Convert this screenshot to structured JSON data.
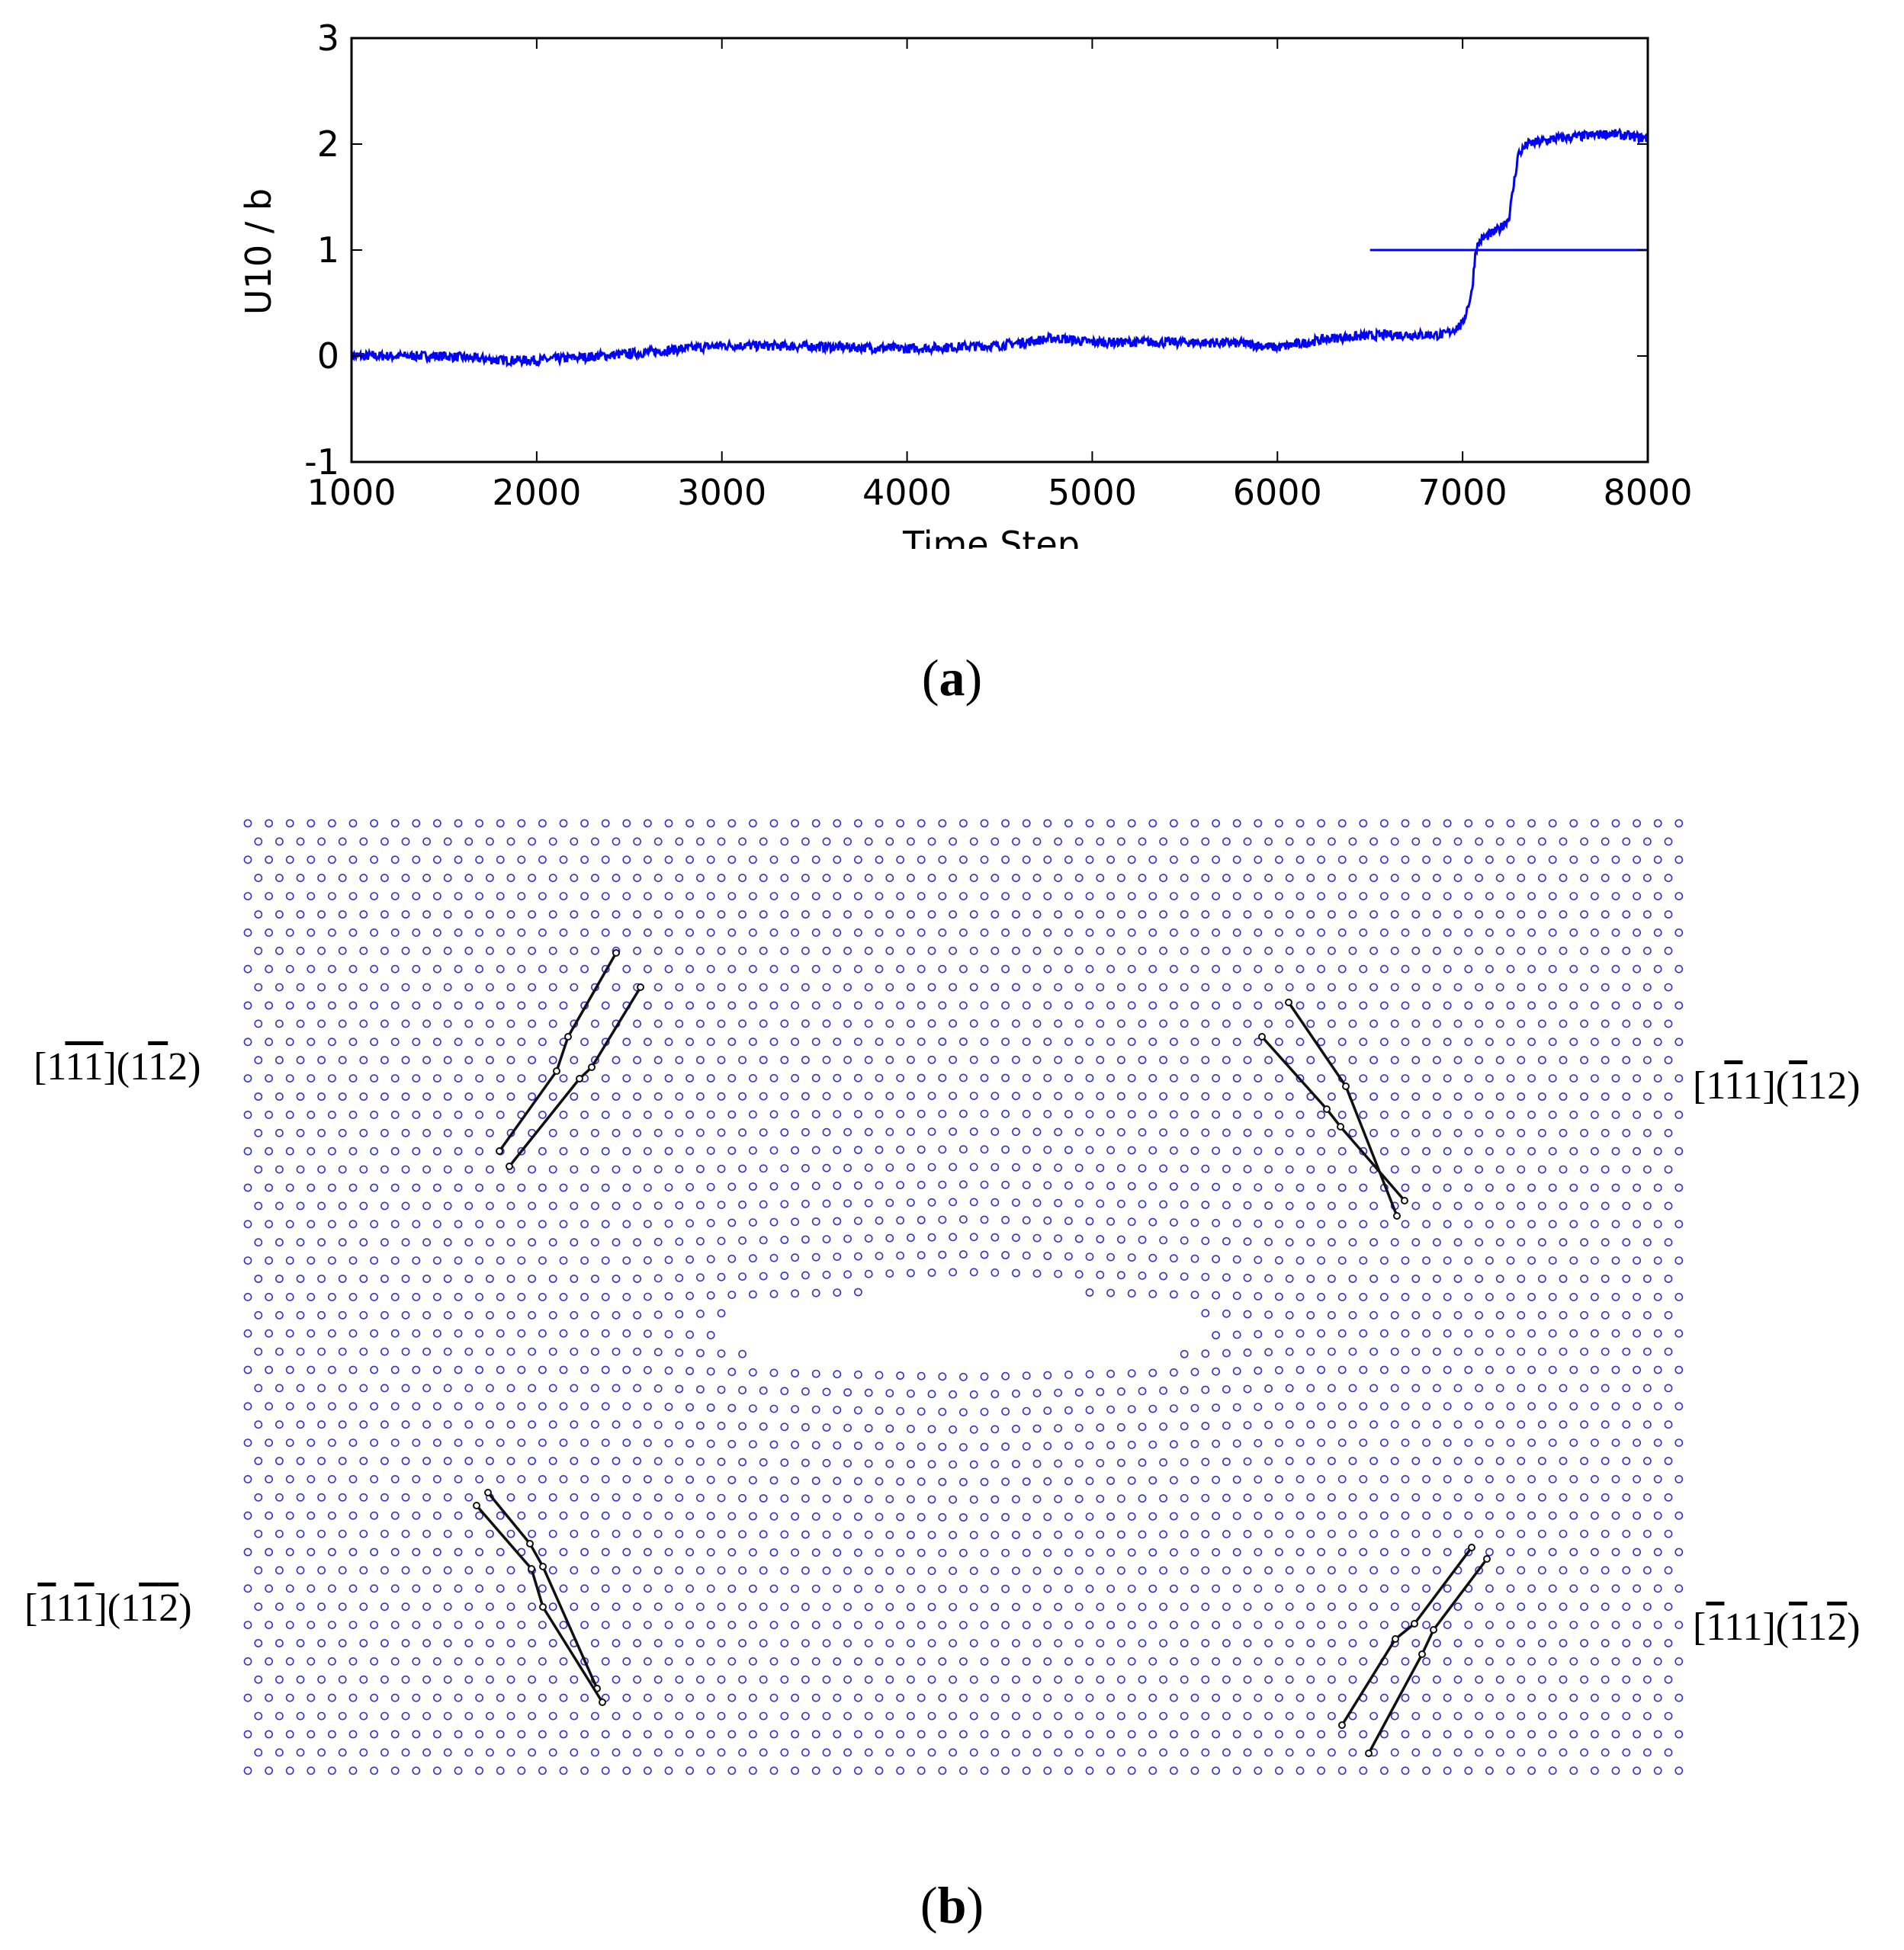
{
  "chart_data": [
    {
      "type": "line",
      "xlabel": "Time Step",
      "ylabel": "U10 / b",
      "xlim": [
        1000,
        8000
      ],
      "ylim": [
        -1,
        3
      ],
      "x_ticks": [
        "1000",
        "2000",
        "3000",
        "4000",
        "5000",
        "6000",
        "7000",
        "8000"
      ],
      "y_ticks": [
        "-1",
        "0",
        "1",
        "2",
        "3"
      ],
      "grid": false,
      "color": "#0000ff",
      "series": [
        {
          "x": [
            1000,
            1500,
            1800,
            2000,
            2500,
            3000,
            3500,
            4000,
            4500,
            4800,
            5000,
            5500,
            5800,
            6000,
            6300,
            6600,
            6900,
            7000,
            7050,
            7070,
            7100,
            7200,
            7250,
            7300,
            7350,
            7500,
            7800,
            8000
          ],
          "values": [
            0.0,
            0.0,
            -0.04,
            -0.04,
            0.02,
            0.1,
            0.09,
            0.07,
            0.1,
            0.17,
            0.13,
            0.13,
            0.12,
            0.08,
            0.17,
            0.2,
            0.2,
            0.3,
            0.6,
            1.0,
            1.1,
            1.2,
            1.3,
            1.9,
            2.0,
            2.05,
            2.1,
            2.05
          ]
        },
        {
          "x": [
            6500,
            8000
          ],
          "values": [
            1.0,
            1.0
          ]
        }
      ]
    },
    {
      "type": "scatter",
      "color": "#3333cc",
      "annotations": [
        {
          "parts": [
            "[1",
            "1",
            "1",
            "](1",
            "1",
            "2)"
          ],
          "overlines": [
            false,
            true,
            true,
            false,
            true,
            false
          ]
        },
        {
          "parts": [
            "[1",
            "1",
            "1](",
            "1",
            "12)"
          ],
          "overlines": [
            false,
            true,
            false,
            true,
            false
          ]
        },
        {
          "parts": [
            "[",
            "1",
            "1",
            "1",
            "](1",
            "1",
            "2",
            ")"
          ],
          "overlines": [
            false,
            true,
            false,
            true,
            false,
            true,
            true,
            false
          ]
        },
        {
          "parts": [
            "[",
            "1",
            "11](",
            "1",
            "1",
            "2",
            ")"
          ],
          "overlines": [
            false,
            true,
            false,
            true,
            false,
            true,
            false
          ]
        }
      ]
    }
  ],
  "captions": {
    "a": "a",
    "b": "b"
  }
}
